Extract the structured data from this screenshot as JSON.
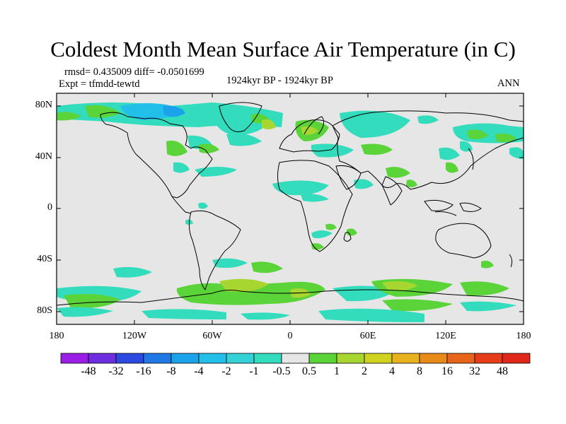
{
  "title": "Coldest Month Mean Surface Air Temperature (in C)",
  "stats": "rmsd= 0.435009 diff= -0.0501699",
  "experiment": "Expt = tfmdd-tewtd",
  "period": "1924kyr BP - 1924kyr BP",
  "season": "ANN",
  "axes": {
    "y_ticks": [
      "80N",
      "40N",
      "0",
      "40S",
      "80S"
    ],
    "x_ticks": [
      "180",
      "120W",
      "60W",
      "0",
      "60E",
      "120E",
      "180"
    ]
  },
  "colorbar": {
    "labels": [
      "-48",
      "-32",
      "-16",
      "-8",
      "-4",
      "-2",
      "-1",
      "-0.5",
      "0.5",
      "1",
      "2",
      "4",
      "8",
      "16",
      "32",
      "48"
    ],
    "colors": [
      "#9a1ee6",
      "#6d2ee0",
      "#2d4ae0",
      "#1f78e6",
      "#1aa2ea",
      "#22bfe8",
      "#34d2d6",
      "#33dcbc",
      "#e6e6e6",
      "#5bd43a",
      "#a8d630",
      "#cfd21e",
      "#e8b21e",
      "#e88a1a",
      "#e8641a",
      "#e63c18",
      "#e0281a"
    ]
  },
  "colors": {
    "land_ocean_neutral": "#e6e6e6",
    "coast": "#000000"
  }
}
